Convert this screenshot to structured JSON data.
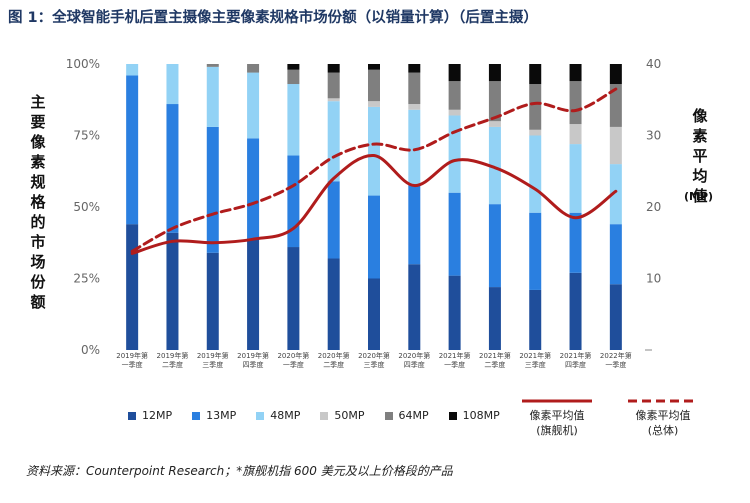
{
  "title": "图 1：全球智能手机后置主摄像主要像素规格市场份额（以销量计算）（后置主摄）",
  "left_axis_label": "主要像素规格的市场份额",
  "right_axis_label": "像素平均值",
  "right_axis_unit": "(MP)",
  "footer": "资料来源：Counterpoint Research；*旗舰机指 600 美元及以上价格段的产品",
  "colors": {
    "12MP": "#1f4e9b",
    "13MP": "#2a7fe0",
    "48MP": "#92d2f5",
    "50MP": "#c8c8c8",
    "64MP": "#7f7f7f",
    "108MP": "#0a0a0a",
    "flagship_line": "#b01c1c",
    "overall_line": "#b01c1c"
  },
  "chart_data": {
    "type": "bar",
    "stacked": true,
    "categories": [
      [
        "2019年第",
        "一季度"
      ],
      [
        "2019年第",
        "二季度"
      ],
      [
        "2019年第",
        "三季度"
      ],
      [
        "2019年第",
        "四季度"
      ],
      [
        "2020年第",
        "一季度"
      ],
      [
        "2020年第",
        "二季度"
      ],
      [
        "2020年第",
        "三季度"
      ],
      [
        "2020年第",
        "四季度"
      ],
      [
        "2021年第",
        "一季度"
      ],
      [
        "2021年第",
        "二季度"
      ],
      [
        "2021年第",
        "三季度"
      ],
      [
        "2021年第",
        "四季度"
      ],
      [
        "2022年第",
        "一季度"
      ]
    ],
    "left_axis": {
      "ticks": [
        "0%",
        "25%",
        "50%",
        "75%",
        "100%"
      ],
      "range": [
        0,
        100
      ]
    },
    "right_axis": {
      "ticks": [
        "",
        "10",
        "20",
        "30",
        "40"
      ],
      "range": [
        0,
        40
      ]
    },
    "series": [
      {
        "name": "12MP",
        "values": [
          44,
          41,
          34,
          39,
          36,
          32,
          25,
          30,
          26,
          22,
          21,
          27,
          23
        ]
      },
      {
        "name": "13MP",
        "values": [
          52,
          45,
          44,
          35,
          32,
          27,
          29,
          28,
          29,
          29,
          27,
          21,
          21
        ]
      },
      {
        "name": "48MP",
        "values": [
          4,
          14,
          21,
          23,
          25,
          28,
          31,
          26,
          27,
          27,
          27,
          24,
          21
        ]
      },
      {
        "name": "50MP",
        "values": [
          0,
          0,
          0,
          0,
          0,
          1,
          2,
          2,
          2,
          2,
          2,
          7,
          13
        ]
      },
      {
        "name": "64MP",
        "values": [
          0,
          0,
          1,
          3,
          5,
          9,
          11,
          11,
          10,
          14,
          16,
          15,
          15
        ]
      },
      {
        "name": "108MP",
        "values": [
          0,
          0,
          0,
          0,
          2,
          3,
          2,
          3,
          6,
          6,
          7,
          6,
          7
        ]
      }
    ],
    "lines": [
      {
        "name": "像素平均值",
        "name_line2": "(旗舰机)",
        "style": "solid",
        "values": [
          13.5,
          15.2,
          15.0,
          15.5,
          17.0,
          24.0,
          27.2,
          23.0,
          26.5,
          25.5,
          22.5,
          18.5,
          22.2
        ]
      },
      {
        "name": "像素平均值",
        "name_line2": "(总体)",
        "style": "dashed",
        "values": [
          13.8,
          17.0,
          19.0,
          20.5,
          23.0,
          27.0,
          28.8,
          28.0,
          30.5,
          32.5,
          34.5,
          33.5,
          36.5
        ]
      }
    ]
  }
}
